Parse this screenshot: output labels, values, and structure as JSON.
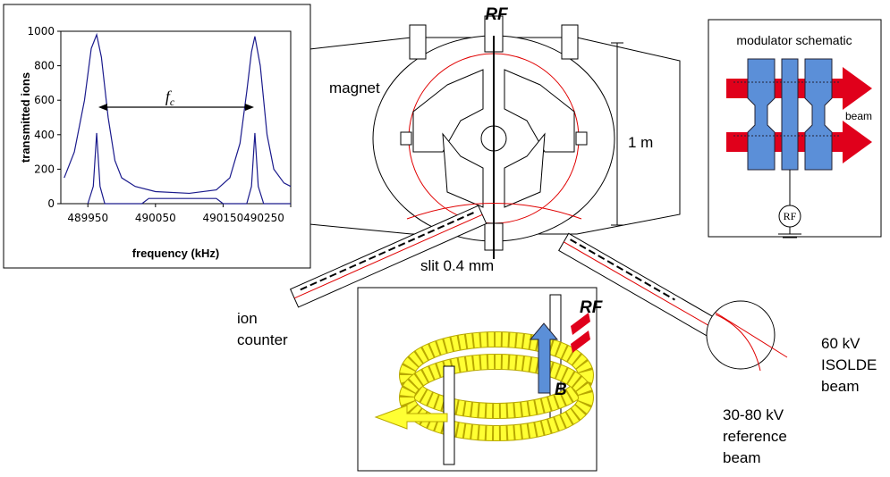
{
  "chart_data": {
    "type": "line",
    "x_label": "frequency (kHz)",
    "y_label": "transmitted ions",
    "annotation": {
      "main": "f",
      "sub": "c"
    },
    "xlim": [
      489910,
      490250
    ],
    "xticks": [
      489950,
      490050,
      490150,
      490250
    ],
    "ylim": [
      0,
      1000
    ],
    "yticks": [
      0,
      200,
      400,
      600,
      800,
      1000
    ],
    "series": [
      {
        "color": "#1a1a8c",
        "x": [
          489915,
          489930,
          489945,
          489955,
          489963,
          489970,
          489980,
          489990,
          490000,
          490020,
          490050,
          490100,
          490140,
          490160,
          490175,
          490185,
          490192,
          490197,
          490205,
          490215,
          490225,
          490240,
          490250
        ],
        "values": [
          150,
          300,
          600,
          900,
          980,
          850,
          500,
          250,
          150,
          100,
          70,
          60,
          80,
          150,
          350,
          650,
          880,
          970,
          800,
          400,
          200,
          120,
          100
        ]
      },
      {
        "color": "#1a1a8c",
        "x": [
          489950,
          489958,
          489963,
          489968,
          489975,
          490030,
          490040,
          490140,
          490150,
          490185,
          490192,
          490197,
          490202,
          490210,
          490250
        ],
        "values": [
          0,
          100,
          410,
          100,
          0,
          0,
          30,
          30,
          0,
          0,
          100,
          410,
          100,
          0,
          0
        ]
      }
    ]
  },
  "diagram": {
    "rf_top": "RF",
    "magnet": "magnet",
    "scale": "1 m",
    "modulator_title": "modulator schematic",
    "modulator_beam": "beam",
    "modulator_rf": "RF",
    "slit": "slit 0.4 mm",
    "ion_counter": [
      "ion",
      "counter"
    ],
    "inset_rf": "RF",
    "inset_b": "B",
    "isolde_beam": [
      "60 kV",
      "ISOLDE",
      "beam"
    ],
    "reference_beam": [
      "30-80 kV",
      "reference",
      "beam"
    ]
  }
}
